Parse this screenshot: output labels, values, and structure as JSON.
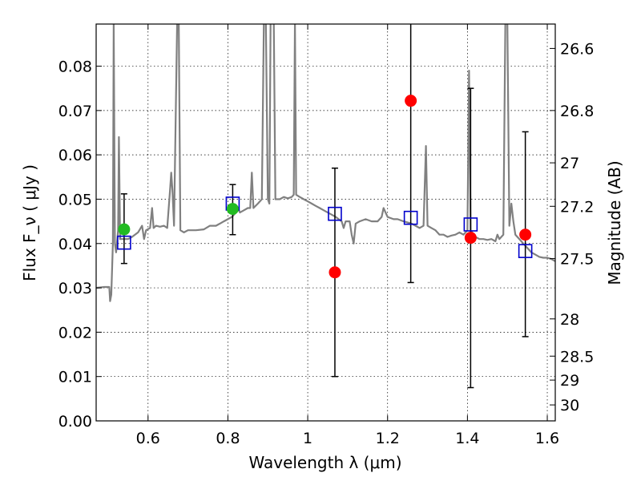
{
  "chart_data": {
    "type": "scatter",
    "xlabel": "Wavelength  λ (μm)",
    "ylabel_left": "Flux  F_ν  ( μJy )",
    "ylabel_right": "Magnitude (AB)",
    "xlim": [
      0.47,
      1.62
    ],
    "ylim": [
      0.0,
      0.0895
    ],
    "grid": true,
    "x_ticks": [
      0.6,
      0.8,
      1.0,
      1.2,
      1.4,
      1.6
    ],
    "x_tick_labels": [
      "0.6",
      "0.8",
      "1",
      "1.2",
      "1.4",
      "1.6"
    ],
    "y_ticks": [
      0.0,
      0.01,
      0.02,
      0.03,
      0.04,
      0.05,
      0.06,
      0.07,
      0.08
    ],
    "y_tick_labels": [
      "0.00",
      "0.01",
      "0.02",
      "0.03",
      "0.04",
      "0.05",
      "0.06",
      "0.07",
      "0.08"
    ],
    "right_ticks": [
      {
        "label": "26.6",
        "flux": 0.084
      },
      {
        "label": "26.8",
        "flux": 0.07
      },
      {
        "label": "27",
        "flux": 0.0582
      },
      {
        "label": "27.2",
        "flux": 0.0484
      },
      {
        "label": "27.5",
        "flux": 0.0366
      },
      {
        "label": "28",
        "flux": 0.023
      },
      {
        "label": "28.5",
        "flux": 0.0146
      },
      {
        "label": "29",
        "flux": 0.0092
      },
      {
        "label": "30",
        "flux": 0.0036
      }
    ],
    "series": [
      {
        "name": "model_spectrum",
        "style": "line",
        "color": "#808080",
        "points": [
          [
            0.47,
            0.03
          ],
          [
            0.49,
            0.0302
          ],
          [
            0.503,
            0.0302
          ],
          [
            0.505,
            0.027
          ],
          [
            0.508,
            0.0285
          ],
          [
            0.512,
            0.04
          ],
          [
            0.514,
            0.09
          ],
          [
            0.517,
            0.04
          ],
          [
            0.52,
            0.038
          ],
          [
            0.525,
            0.043
          ],
          [
            0.527,
            0.064
          ],
          [
            0.53,
            0.041
          ],
          [
            0.54,
            0.041
          ],
          [
            0.55,
            0.041
          ],
          [
            0.56,
            0.0415
          ],
          [
            0.575,
            0.0425
          ],
          [
            0.585,
            0.044
          ],
          [
            0.59,
            0.041
          ],
          [
            0.595,
            0.043
          ],
          [
            0.605,
            0.0435
          ],
          [
            0.61,
            0.048
          ],
          [
            0.614,
            0.0435
          ],
          [
            0.62,
            0.044
          ],
          [
            0.63,
            0.0438
          ],
          [
            0.64,
            0.044
          ],
          [
            0.648,
            0.0435
          ],
          [
            0.655,
            0.052
          ],
          [
            0.658,
            0.056
          ],
          [
            0.661,
            0.052
          ],
          [
            0.665,
            0.044
          ],
          [
            0.673,
            0.09
          ],
          [
            0.677,
            0.09
          ],
          [
            0.681,
            0.043
          ],
          [
            0.69,
            0.0425
          ],
          [
            0.7,
            0.043
          ],
          [
            0.72,
            0.043
          ],
          [
            0.74,
            0.0432
          ],
          [
            0.755,
            0.044
          ],
          [
            0.77,
            0.044
          ],
          [
            0.78,
            0.0445
          ],
          [
            0.79,
            0.045
          ],
          [
            0.8,
            0.0455
          ],
          [
            0.81,
            0.046
          ],
          [
            0.82,
            0.047
          ],
          [
            0.825,
            0.048
          ],
          [
            0.83,
            0.047
          ],
          [
            0.84,
            0.0475
          ],
          [
            0.85,
            0.048
          ],
          [
            0.856,
            0.048
          ],
          [
            0.86,
            0.056
          ],
          [
            0.864,
            0.048
          ],
          [
            0.875,
            0.049
          ],
          [
            0.885,
            0.05
          ],
          [
            0.89,
            0.09
          ],
          [
            0.895,
            0.09
          ],
          [
            0.9,
            0.05
          ],
          [
            0.904,
            0.049
          ],
          [
            0.907,
            0.09
          ],
          [
            0.915,
            0.09
          ],
          [
            0.919,
            0.05
          ],
          [
            0.93,
            0.05
          ],
          [
            0.94,
            0.0505
          ],
          [
            0.95,
            0.0502
          ],
          [
            0.96,
            0.0505
          ],
          [
            0.965,
            0.051
          ],
          [
            0.968,
            0.09
          ],
          [
            0.971,
            0.051
          ],
          [
            0.98,
            0.0505
          ],
          [
            0.99,
            0.05
          ],
          [
            1.0,
            0.0495
          ],
          [
            1.01,
            0.049
          ],
          [
            1.02,
            0.0485
          ],
          [
            1.03,
            0.048
          ],
          [
            1.04,
            0.0475
          ],
          [
            1.05,
            0.047
          ],
          [
            1.06,
            0.0465
          ],
          [
            1.07,
            0.046
          ],
          [
            1.085,
            0.045
          ],
          [
            1.09,
            0.0435
          ],
          [
            1.095,
            0.045
          ],
          [
            1.105,
            0.045
          ],
          [
            1.11,
            0.042
          ],
          [
            1.115,
            0.04
          ],
          [
            1.12,
            0.0445
          ],
          [
            1.13,
            0.045
          ],
          [
            1.145,
            0.0455
          ],
          [
            1.16,
            0.045
          ],
          [
            1.175,
            0.045
          ],
          [
            1.185,
            0.046
          ],
          [
            1.19,
            0.048
          ],
          [
            1.195,
            0.047
          ],
          [
            1.2,
            0.046
          ],
          [
            1.215,
            0.0455
          ],
          [
            1.225,
            0.0455
          ],
          [
            1.24,
            0.045
          ],
          [
            1.26,
            0.0445
          ],
          [
            1.28,
            0.0435
          ],
          [
            1.29,
            0.044
          ],
          [
            1.296,
            0.062
          ],
          [
            1.3,
            0.044
          ],
          [
            1.31,
            0.0435
          ],
          [
            1.32,
            0.043
          ],
          [
            1.33,
            0.042
          ],
          [
            1.34,
            0.042
          ],
          [
            1.35,
            0.0415
          ],
          [
            1.36,
            0.0418
          ],
          [
            1.37,
            0.042
          ],
          [
            1.38,
            0.0425
          ],
          [
            1.39,
            0.042
          ],
          [
            1.4,
            0.043
          ],
          [
            1.404,
            0.079
          ],
          [
            1.408,
            0.043
          ],
          [
            1.42,
            0.0415
          ],
          [
            1.43,
            0.041
          ],
          [
            1.44,
            0.041
          ],
          [
            1.45,
            0.0408
          ],
          [
            1.46,
            0.041
          ],
          [
            1.47,
            0.0405
          ],
          [
            1.475,
            0.042
          ],
          [
            1.48,
            0.041
          ],
          [
            1.49,
            0.042
          ],
          [
            1.495,
            0.09
          ],
          [
            1.5,
            0.09
          ],
          [
            1.505,
            0.044
          ],
          [
            1.51,
            0.049
          ],
          [
            1.515,
            0.045
          ],
          [
            1.52,
            0.042
          ],
          [
            1.53,
            0.041
          ],
          [
            1.54,
            0.04
          ],
          [
            1.55,
            0.039
          ],
          [
            1.56,
            0.038
          ],
          [
            1.57,
            0.0375
          ],
          [
            1.58,
            0.037
          ],
          [
            1.59,
            0.0368
          ],
          [
            1.6,
            0.0368
          ],
          [
            1.61,
            0.0365
          ],
          [
            1.62,
            0.036
          ]
        ]
      },
      {
        "name": "observed_detections",
        "style": "marker-circle",
        "color": "#ff0000",
        "points": [
          {
            "x": 1.068,
            "y": 0.0335,
            "err_lo": 0.0235,
            "err_hi": 0.0235
          },
          {
            "x": 1.258,
            "y": 0.0722,
            "err_lo": 0.041,
            "err_hi": 0.019
          },
          {
            "x": 1.408,
            "y": 0.0413,
            "err_lo": 0.0338,
            "err_hi": 0.0337
          },
          {
            "x": 1.545,
            "y": 0.042,
            "err_lo": 0.023,
            "err_hi": 0.0232
          }
        ]
      },
      {
        "name": "observed_optical",
        "style": "marker-circle",
        "color": "#22bb22",
        "points": [
          {
            "x": 0.54,
            "y": 0.0432,
            "err_lo": 0.0077,
            "err_hi": 0.008
          },
          {
            "x": 0.812,
            "y": 0.0478,
            "err_lo": 0.0058,
            "err_hi": 0.0055
          }
        ]
      },
      {
        "name": "model_bandpass_flux",
        "style": "marker-square-open",
        "color": "#0000cc",
        "points": [
          {
            "x": 0.54,
            "y": 0.0402
          },
          {
            "x": 0.812,
            "y": 0.049
          },
          {
            "x": 1.068,
            "y": 0.0467
          },
          {
            "x": 1.258,
            "y": 0.0458
          },
          {
            "x": 1.408,
            "y": 0.0443
          },
          {
            "x": 1.545,
            "y": 0.0383
          }
        ]
      }
    ]
  }
}
